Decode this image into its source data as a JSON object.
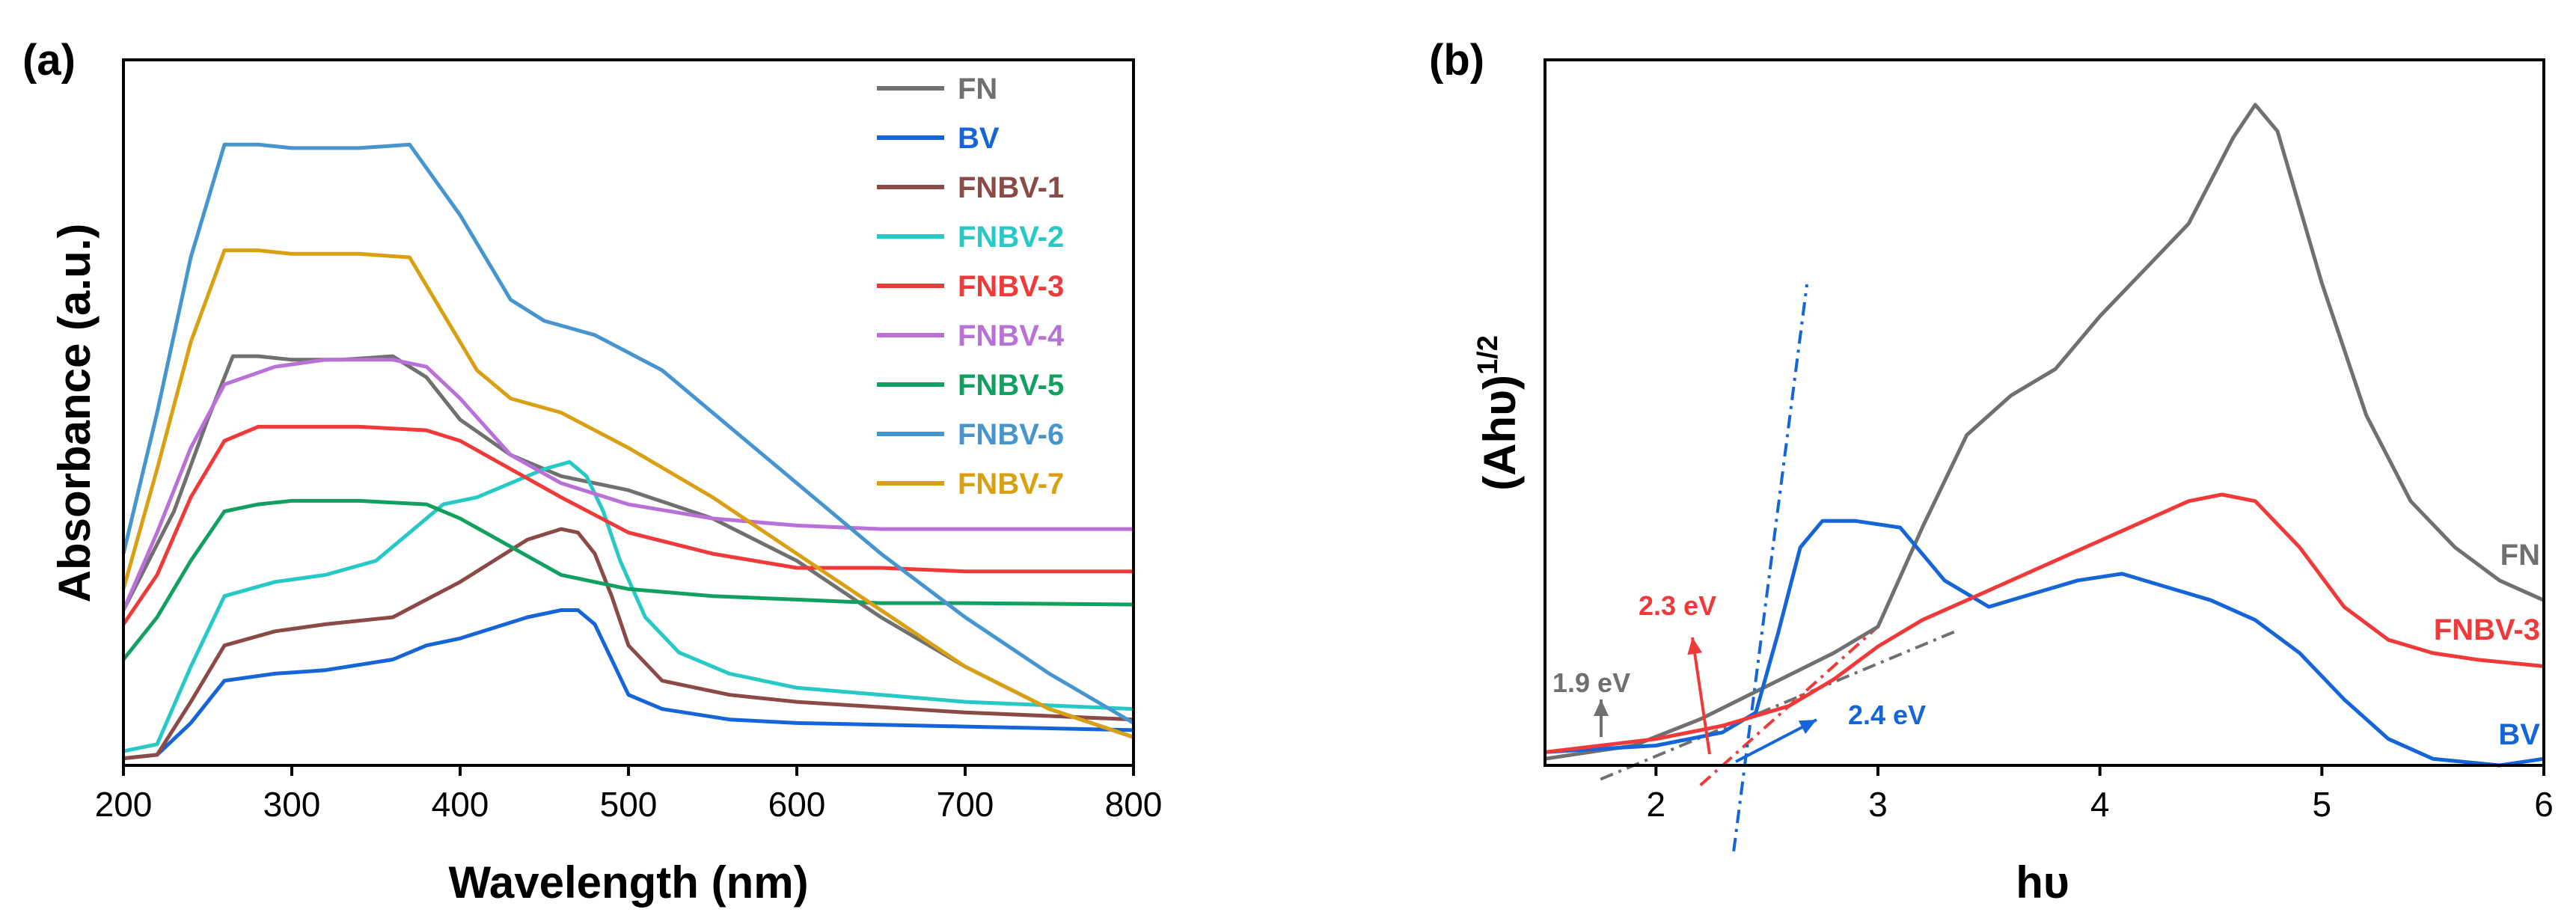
{
  "chart_data": [
    {
      "panel": "(a)",
      "type": "line",
      "xlabel": "Wavelength (nm)",
      "ylabel": "Absorbance (a.u.)",
      "xlim": [
        200,
        800
      ],
      "ylim": [
        0,
        1
      ],
      "x_ticks": [
        "200",
        "300",
        "400",
        "500",
        "600",
        "700",
        "800"
      ],
      "legend_position": "top-right",
      "series": [
        {
          "name": "FN",
          "color": "#707070",
          "x": [
            200,
            230,
            250,
            265,
            280,
            300,
            330,
            360,
            380,
            400,
            430,
            460,
            500,
            550,
            600,
            650,
            700,
            750,
            800
          ],
          "y": [
            0.22,
            0.36,
            0.49,
            0.58,
            0.58,
            0.575,
            0.575,
            0.58,
            0.55,
            0.49,
            0.44,
            0.41,
            0.39,
            0.35,
            0.29,
            0.21,
            0.14,
            0.08,
            0.04
          ]
        },
        {
          "name": "BV",
          "color": "#1565d8",
          "x": [
            200,
            220,
            240,
            260,
            290,
            320,
            360,
            380,
            400,
            420,
            440,
            460,
            470,
            480,
            490,
            500,
            520,
            560,
            600,
            700,
            800
          ],
          "y": [
            0.01,
            0.015,
            0.06,
            0.12,
            0.13,
            0.135,
            0.15,
            0.17,
            0.18,
            0.195,
            0.21,
            0.22,
            0.22,
            0.2,
            0.15,
            0.1,
            0.08,
            0.065,
            0.06,
            0.055,
            0.05
          ]
        },
        {
          "name": "FNBV-1",
          "color": "#8b4a46",
          "x": [
            200,
            220,
            240,
            260,
            290,
            320,
            360,
            380,
            400,
            420,
            440,
            460,
            470,
            480,
            490,
            500,
            520,
            560,
            600,
            700,
            800
          ],
          "y": [
            0.01,
            0.015,
            0.09,
            0.17,
            0.19,
            0.2,
            0.21,
            0.235,
            0.26,
            0.29,
            0.32,
            0.335,
            0.33,
            0.3,
            0.24,
            0.17,
            0.12,
            0.1,
            0.09,
            0.075,
            0.065
          ]
        },
        {
          "name": "FNBV-2",
          "color": "#26c9c5",
          "x": [
            200,
            220,
            240,
            260,
            290,
            320,
            350,
            370,
            390,
            410,
            430,
            450,
            465,
            475,
            485,
            495,
            510,
            530,
            560,
            600,
            700,
            800
          ],
          "y": [
            0.02,
            0.03,
            0.14,
            0.24,
            0.26,
            0.27,
            0.29,
            0.33,
            0.37,
            0.38,
            0.4,
            0.42,
            0.43,
            0.41,
            0.36,
            0.29,
            0.21,
            0.16,
            0.13,
            0.11,
            0.09,
            0.08
          ]
        },
        {
          "name": "FNBV-3",
          "color": "#f03a3a",
          "x": [
            200,
            220,
            240,
            260,
            280,
            300,
            340,
            380,
            400,
            430,
            460,
            500,
            550,
            600,
            650,
            700,
            800
          ],
          "y": [
            0.2,
            0.27,
            0.38,
            0.46,
            0.48,
            0.48,
            0.48,
            0.475,
            0.46,
            0.42,
            0.38,
            0.33,
            0.3,
            0.28,
            0.28,
            0.275,
            0.275
          ]
        },
        {
          "name": "FNBV-4",
          "color": "#b971d8",
          "x": [
            200,
            220,
            240,
            260,
            290,
            320,
            360,
            380,
            400,
            430,
            460,
            500,
            550,
            600,
            650,
            700,
            800
          ],
          "y": [
            0.22,
            0.33,
            0.45,
            0.54,
            0.565,
            0.575,
            0.575,
            0.565,
            0.52,
            0.44,
            0.4,
            0.37,
            0.35,
            0.34,
            0.335,
            0.335,
            0.335
          ]
        },
        {
          "name": "FNBV-5",
          "color": "#12a060",
          "x": [
            200,
            220,
            240,
            260,
            280,
            300,
            340,
            380,
            400,
            430,
            460,
            500,
            550,
            600,
            650,
            700,
            800
          ],
          "y": [
            0.15,
            0.21,
            0.29,
            0.36,
            0.37,
            0.375,
            0.375,
            0.37,
            0.35,
            0.31,
            0.27,
            0.25,
            0.24,
            0.235,
            0.23,
            0.23,
            0.228
          ]
        },
        {
          "name": "FNBV-6",
          "color": "#4795cf",
          "x": [
            200,
            220,
            240,
            260,
            280,
            300,
            340,
            370,
            400,
            430,
            450,
            480,
            520,
            560,
            600,
            650,
            700,
            750,
            800
          ],
          "y": [
            0.3,
            0.5,
            0.72,
            0.88,
            0.88,
            0.875,
            0.875,
            0.88,
            0.78,
            0.66,
            0.63,
            0.61,
            0.56,
            0.48,
            0.4,
            0.3,
            0.21,
            0.13,
            0.06
          ]
        },
        {
          "name": "FNBV-7",
          "color": "#d8a012",
          "x": [
            200,
            220,
            240,
            260,
            280,
            300,
            340,
            370,
            390,
            410,
            430,
            460,
            500,
            550,
            600,
            650,
            700,
            750,
            800
          ],
          "y": [
            0.25,
            0.42,
            0.6,
            0.73,
            0.73,
            0.725,
            0.725,
            0.72,
            0.64,
            0.56,
            0.52,
            0.5,
            0.45,
            0.38,
            0.3,
            0.22,
            0.14,
            0.08,
            0.04
          ]
        }
      ]
    },
    {
      "panel": "(b)",
      "type": "line",
      "xlabel": "hυ",
      "ylabel": "(Ahυ)1/2",
      "xlim": [
        1.5,
        6
      ],
      "ylim": [
        0,
        1
      ],
      "x_ticks": [
        "2",
        "3",
        "4",
        "5",
        "6"
      ],
      "series": [
        {
          "name": "FN",
          "color": "#707070",
          "x": [
            1.5,
            1.9,
            2.2,
            2.5,
            2.8,
            3.0,
            3.2,
            3.4,
            3.6,
            3.8,
            4.0,
            4.2,
            4.4,
            4.6,
            4.7,
            4.8,
            5.0,
            5.2,
            5.4,
            5.6,
            5.8,
            6.0
          ],
          "y": [
            0.01,
            0.03,
            0.07,
            0.12,
            0.17,
            0.21,
            0.36,
            0.5,
            0.56,
            0.6,
            0.68,
            0.75,
            0.82,
            0.95,
            1.0,
            0.96,
            0.73,
            0.53,
            0.4,
            0.33,
            0.28,
            0.25
          ]
        },
        {
          "name": "BV",
          "color": "#1565d8",
          "x": [
            1.5,
            2.0,
            2.3,
            2.45,
            2.55,
            2.65,
            2.75,
            2.9,
            3.1,
            3.3,
            3.5,
            3.7,
            3.9,
            4.1,
            4.3,
            4.5,
            4.7,
            4.9,
            5.1,
            5.3,
            5.5,
            5.8,
            6.0
          ],
          "y": [
            0.02,
            0.03,
            0.05,
            0.08,
            0.2,
            0.33,
            0.37,
            0.37,
            0.36,
            0.28,
            0.24,
            0.26,
            0.28,
            0.29,
            0.27,
            0.25,
            0.22,
            0.17,
            0.1,
            0.04,
            0.01,
            0.0,
            0.01
          ]
        },
        {
          "name": "FNBV-3",
          "color": "#f03a3a",
          "x": [
            1.5,
            2.0,
            2.3,
            2.6,
            2.8,
            3.0,
            3.2,
            3.4,
            3.6,
            3.8,
            4.0,
            4.2,
            4.4,
            4.55,
            4.7,
            4.9,
            5.1,
            5.3,
            5.5,
            5.7,
            6.0
          ],
          "y": [
            0.02,
            0.04,
            0.06,
            0.09,
            0.13,
            0.18,
            0.22,
            0.25,
            0.28,
            0.31,
            0.34,
            0.37,
            0.4,
            0.41,
            0.4,
            0.33,
            0.24,
            0.19,
            0.17,
            0.16,
            0.15
          ]
        }
      ],
      "curve_labels": [
        "FN",
        "FNBV-3",
        "BV"
      ],
      "annotations": [
        {
          "text": "1.9 eV",
          "color": "#707070",
          "x": 1.9
        },
        {
          "text": "2.3 eV",
          "color": "#f03a3a",
          "x": 2.3
        },
        {
          "text": "2.4 eV",
          "color": "#1565d8",
          "x": 2.4
        }
      ]
    }
  ]
}
